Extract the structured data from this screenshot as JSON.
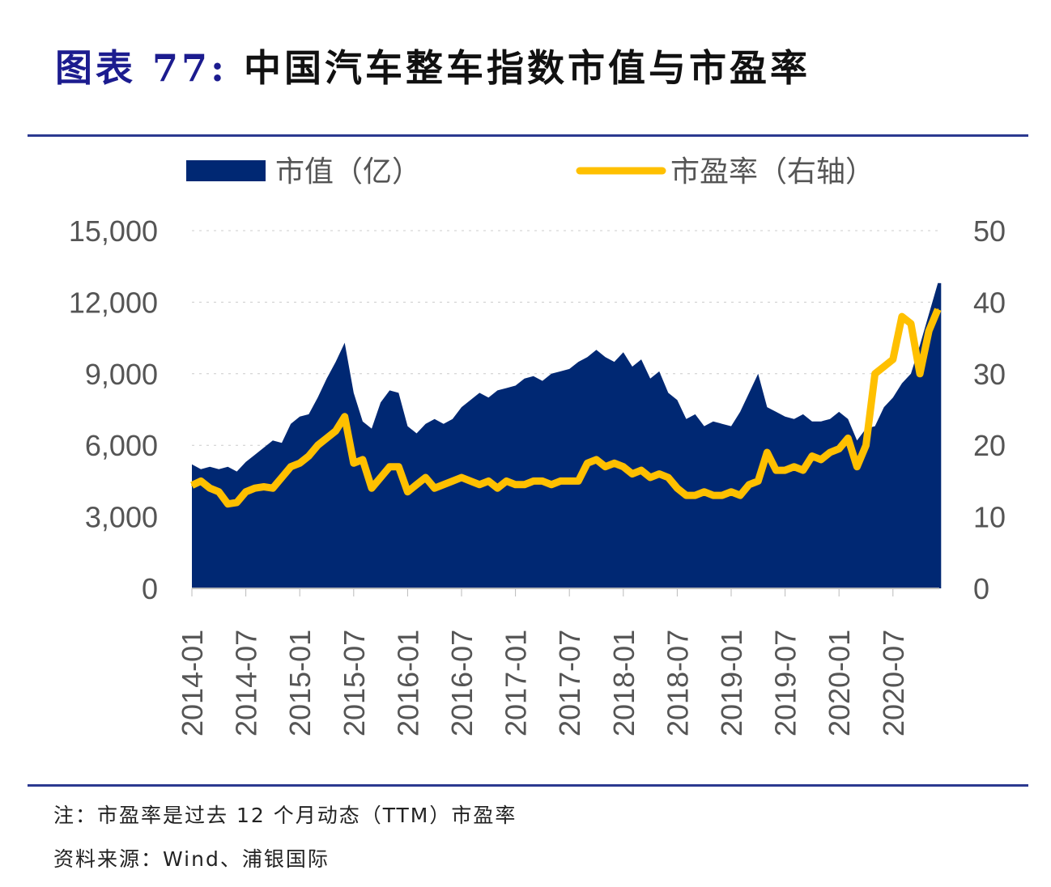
{
  "title": {
    "label": "图表 77:",
    "text": "中国汽车整车指数市值与市盈率"
  },
  "notes": {
    "note": "注：市盈率是过去 12 个月动态（TTM）市盈率",
    "source": "资料来源：Wind、浦银国际"
  },
  "chart_data": {
    "type": "area+line",
    "legend_placement": "top",
    "colors": {
      "market_cap": "#002873",
      "pe": "#FFC000",
      "axis": "#2b3990"
    },
    "left_axis": {
      "ylim": [
        0,
        15000
      ],
      "ticks": [
        "0",
        "3,000",
        "6,000",
        "9,000",
        "12,000",
        "15,000"
      ]
    },
    "right_axis": {
      "ylim": [
        0,
        50
      ],
      "ticks": [
        "0",
        "10",
        "20",
        "30",
        "40",
        "50"
      ]
    },
    "x_tick_labels": [
      "2014-01",
      "2014-07",
      "2015-01",
      "2015-07",
      "2016-01",
      "2016-07",
      "2017-01",
      "2017-07",
      "2018-01",
      "2018-07",
      "2019-01",
      "2019-07",
      "2020-01",
      "2020-07"
    ],
    "x_start": "2014-01",
    "series": [
      {
        "name": "市值（亿）",
        "type": "area",
        "axis": "left",
        "values": [
          5200,
          5000,
          5100,
          5000,
          5100,
          4900,
          5300,
          5600,
          5900,
          6200,
          6100,
          6900,
          7200,
          7300,
          8000,
          8800,
          9500,
          10300,
          8200,
          7000,
          6700,
          7800,
          8300,
          8200,
          6800,
          6500,
          6900,
          7100,
          6900,
          7100,
          7600,
          7900,
          8200,
          8000,
          8300,
          8400,
          8500,
          8800,
          8900,
          8700,
          9000,
          9100,
          9200,
          9500,
          9700,
          10000,
          9700,
          9500,
          9900,
          9300,
          9600,
          8800,
          9100,
          8200,
          7900,
          7100,
          7300,
          6800,
          7000,
          6900,
          6800,
          7400,
          8200,
          9000,
          7600,
          7400,
          7200,
          7100,
          7300,
          7000,
          7000,
          7100,
          7400,
          7100,
          6200,
          6700,
          6800,
          7600,
          8000,
          8600,
          9000,
          10200,
          11500,
          12800
        ]
      },
      {
        "name": "市盈率（右轴）",
        "type": "line",
        "axis": "right",
        "values": [
          14.4,
          15,
          14,
          13.5,
          11.8,
          12,
          13.5,
          14,
          14.2,
          14,
          15.5,
          17,
          17.5,
          18.5,
          20,
          21,
          22,
          24,
          17.5,
          18,
          14,
          15.5,
          17,
          17,
          13.5,
          14.5,
          15.5,
          14,
          14.5,
          15,
          15.5,
          15,
          14.5,
          15,
          14,
          15,
          14.5,
          14.5,
          15,
          15,
          14.5,
          15,
          15,
          15,
          17.5,
          18,
          17,
          17.5,
          17,
          16,
          16.5,
          15.5,
          16,
          15.5,
          14,
          13,
          13,
          13.5,
          13,
          13,
          13.5,
          13,
          14.5,
          15,
          19,
          16.5,
          16.5,
          17,
          16.5,
          18.5,
          18,
          19,
          19.5,
          21,
          17,
          20,
          30,
          31,
          32,
          38,
          37,
          30,
          36,
          39
        ]
      }
    ]
  }
}
